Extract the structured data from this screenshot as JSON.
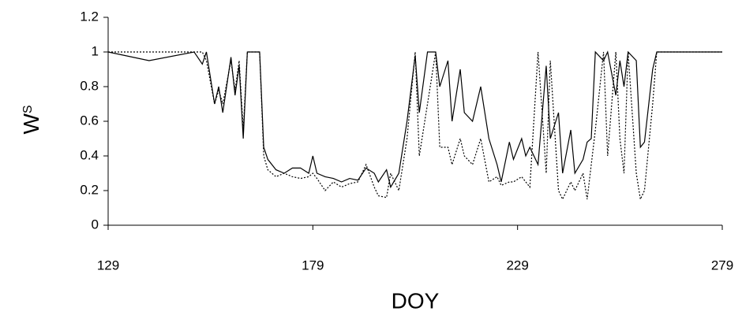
{
  "chart_data": {
    "type": "line",
    "xlabel": "DOY",
    "ylabel": "W",
    "ylabel_subscript": "S",
    "x": [
      129,
      139,
      150,
      152,
      153,
      155,
      156,
      157,
      159,
      160,
      161,
      162,
      163,
      164,
      166,
      167,
      168,
      170,
      172,
      174,
      176,
      178,
      179,
      180,
      182,
      184,
      186,
      188,
      190,
      192,
      194,
      195,
      197,
      198,
      200,
      202,
      204,
      205,
      207,
      209,
      210,
      212,
      213,
      215,
      216,
      218,
      220,
      222,
      224,
      225,
      227,
      228,
      230,
      231,
      232,
      234,
      236,
      237,
      239,
      240,
      242,
      243,
      245,
      246,
      247,
      248,
      250,
      251,
      253,
      254,
      255,
      256,
      258,
      259,
      260,
      262,
      263,
      265,
      279
    ],
    "series": [
      {
        "color": "#000000",
        "dash": "solid",
        "values": [
          1,
          0.95,
          1,
          0.93,
          1,
          0.7,
          0.8,
          0.65,
          0.97,
          0.75,
          0.92,
          0.5,
          1,
          1,
          1,
          0.45,
          0.38,
          0.32,
          0.3,
          0.33,
          0.33,
          0.3,
          0.4,
          0.3,
          0.28,
          0.27,
          0.25,
          0.27,
          0.26,
          0.33,
          0.3,
          0.25,
          0.32,
          0.22,
          0.3,
          0.6,
          0.98,
          0.65,
          1,
          1,
          0.8,
          0.95,
          0.6,
          0.9,
          0.65,
          0.6,
          0.8,
          0.5,
          0.35,
          0.25,
          0.48,
          0.38,
          0.5,
          0.4,
          0.45,
          0.35,
          0.92,
          0.5,
          0.65,
          0.3,
          0.55,
          0.3,
          0.38,
          0.48,
          0.5,
          1,
          0.95,
          1,
          0.75,
          0.95,
          0.8,
          1,
          0.95,
          0.45,
          0.48,
          0.9,
          1,
          1,
          1
        ]
      },
      {
        "color": "#000000",
        "dash": "dotted",
        "values": [
          1,
          1,
          1,
          1,
          0.95,
          0.7,
          0.78,
          0.7,
          0.95,
          0.78,
          0.95,
          0.55,
          1,
          1,
          1,
          0.4,
          0.32,
          0.28,
          0.3,
          0.28,
          0.27,
          0.28,
          0.3,
          0.27,
          0.2,
          0.25,
          0.22,
          0.24,
          0.25,
          0.35,
          0.22,
          0.17,
          0.16,
          0.3,
          0.2,
          0.5,
          1,
          0.4,
          0.7,
          1,
          0.45,
          0.45,
          0.35,
          0.5,
          0.4,
          0.35,
          0.5,
          0.25,
          0.28,
          0.23,
          0.25,
          0.25,
          0.28,
          0.25,
          0.22,
          1,
          0.3,
          0.95,
          0.2,
          0.15,
          0.25,
          0.2,
          0.3,
          0.15,
          0.35,
          0.55,
          1,
          0.4,
          1,
          0.5,
          0.3,
          1,
          0.3,
          0.15,
          0.2,
          0.7,
          1,
          1,
          1
        ]
      }
    ],
    "xlim": [
      129,
      279
    ],
    "xticks": [
      129,
      179,
      229,
      279
    ],
    "ylim": [
      0,
      1.2
    ],
    "yticks": [
      0,
      0.2,
      0.4,
      0.6,
      0.8,
      1,
      1.2
    ],
    "grid": false
  }
}
